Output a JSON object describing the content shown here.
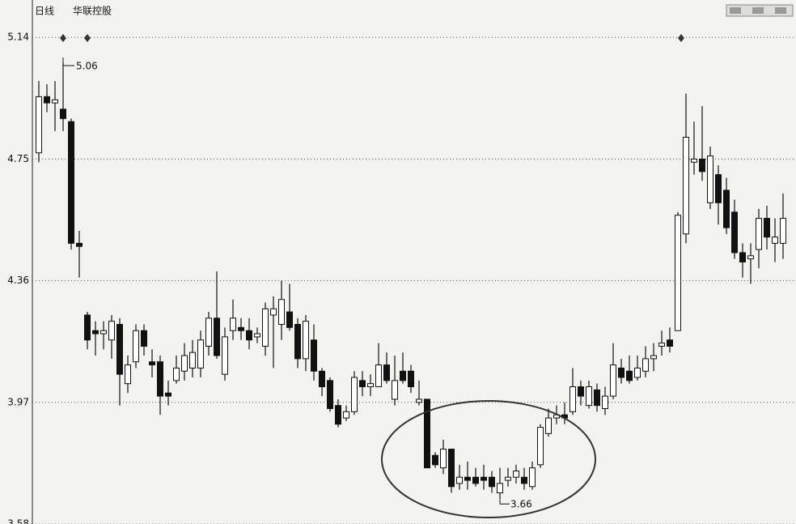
{
  "chart_data": {
    "type": "candlestick",
    "title": "日线",
    "subtitle": "华联控股",
    "open": [
      4.77,
      4.95,
      4.93,
      4.91,
      4.87,
      4.48,
      4.25,
      4.2,
      4.19,
      4.17,
      4.22,
      4.03,
      4.1,
      4.2,
      4.1,
      4.1,
      4.0,
      4.04,
      4.07,
      4.08,
      4.08,
      4.15,
      4.24,
      4.06,
      4.2,
      4.21,
      4.2,
      4.18,
      4.15,
      4.25,
      4.22,
      4.26,
      4.22,
      4.11,
      4.17,
      4.07,
      4.04,
      3.96,
      3.92,
      3.94,
      4.04,
      4.02,
      4.02,
      4.09,
      3.98,
      4.07,
      4.07,
      3.97,
      3.98,
      3.8,
      3.76,
      3.82,
      3.71,
      3.73,
      3.73,
      3.73,
      3.73,
      3.68,
      3.72,
      3.73,
      3.73,
      3.7,
      3.77,
      3.87,
      3.92,
      3.93,
      3.94,
      4.02,
      3.96,
      4.01,
      3.95,
      3.99,
      4.08,
      4.07,
      4.05,
      4.07,
      4.11,
      4.15,
      4.17,
      4.2,
      4.51,
      4.74,
      4.75,
      4.61,
      4.7,
      4.65,
      4.58,
      4.45,
      4.43,
      4.46,
      4.56,
      4.48,
      4.48
    ],
    "high": [
      5.0,
      4.99,
      5.0,
      5.06,
      4.88,
      4.52,
      4.26,
      4.23,
      4.23,
      4.25,
      4.24,
      4.12,
      4.22,
      4.22,
      4.14,
      4.12,
      4.04,
      4.12,
      4.16,
      4.17,
      4.2,
      4.26,
      4.39,
      4.21,
      4.3,
      4.24,
      4.24,
      4.21,
      4.29,
      4.31,
      4.36,
      4.35,
      4.24,
      4.25,
      4.22,
      4.08,
      4.05,
      3.98,
      3.96,
      4.07,
      4.07,
      4.06,
      4.16,
      4.13,
      4.12,
      4.13,
      4.09,
      4.04,
      3.98,
      3.81,
      3.85,
      3.82,
      3.77,
      3.78,
      3.76,
      3.77,
      3.75,
      3.76,
      3.76,
      3.77,
      3.76,
      3.78,
      3.9,
      3.95,
      3.96,
      3.97,
      4.08,
      4.04,
      4.04,
      4.03,
      4.02,
      4.16,
      4.11,
      4.12,
      4.12,
      4.15,
      4.16,
      4.2,
      4.21,
      4.58,
      4.96,
      4.87,
      4.92,
      4.79,
      4.73,
      4.69,
      4.62,
      4.48,
      4.48,
      4.59,
      4.6,
      4.56,
      4.64
    ],
    "low": [
      4.74,
      4.9,
      4.84,
      4.84,
      4.46,
      4.37,
      4.14,
      4.12,
      4.14,
      4.11,
      3.96,
      4.0,
      4.08,
      4.12,
      4.05,
      3.93,
      3.96,
      4.03,
      4.04,
      4.05,
      4.05,
      4.12,
      4.11,
      4.04,
      4.17,
      4.17,
      4.14,
      4.16,
      4.12,
      4.08,
      4.17,
      4.2,
      4.08,
      4.07,
      4.04,
      3.99,
      3.94,
      3.89,
      3.91,
      3.93,
      3.99,
      3.99,
      4.02,
      4.03,
      3.96,
      4.03,
      4.0,
      3.96,
      3.76,
      3.76,
      3.74,
      3.68,
      3.69,
      3.69,
      3.7,
      3.69,
      3.68,
      3.66,
      3.7,
      3.71,
      3.69,
      3.69,
      3.76,
      3.86,
      3.9,
      3.9,
      3.93,
      3.96,
      3.95,
      3.94,
      3.93,
      3.98,
      4.03,
      4.03,
      4.04,
      4.05,
      4.07,
      4.12,
      4.13,
      4.2,
      4.48,
      4.7,
      4.68,
      4.59,
      4.54,
      4.51,
      4.43,
      4.37,
      4.35,
      4.4,
      4.46,
      4.42,
      4.43
    ],
    "close": [
      4.95,
      4.93,
      4.94,
      4.88,
      4.48,
      4.47,
      4.17,
      4.19,
      4.2,
      4.23,
      4.06,
      4.09,
      4.2,
      4.15,
      4.09,
      3.99,
      3.99,
      4.08,
      4.12,
      4.13,
      4.17,
      4.24,
      4.12,
      4.18,
      4.24,
      4.2,
      4.17,
      4.19,
      4.27,
      4.27,
      4.3,
      4.21,
      4.11,
      4.23,
      4.07,
      4.02,
      3.95,
      3.9,
      3.94,
      4.05,
      4.02,
      4.03,
      4.09,
      4.04,
      4.04,
      4.04,
      4.02,
      3.98,
      3.76,
      3.77,
      3.82,
      3.7,
      3.73,
      3.72,
      3.71,
      3.72,
      3.7,
      3.71,
      3.73,
      3.75,
      3.71,
      3.76,
      3.89,
      3.92,
      3.93,
      3.92,
      4.02,
      3.99,
      4.02,
      3.96,
      3.99,
      4.09,
      4.05,
      4.04,
      4.08,
      4.11,
      4.12,
      4.16,
      4.15,
      4.57,
      4.82,
      4.75,
      4.71,
      4.76,
      4.61,
      4.53,
      4.45,
      4.42,
      4.44,
      4.56,
      4.5,
      4.5,
      4.56
    ],
    "color": "#111111",
    "ylim": [
      3.58,
      5.26
    ],
    "yticks": [
      5.14,
      4.75,
      4.36,
      3.97,
      3.58
    ],
    "grid": true
  }
}
